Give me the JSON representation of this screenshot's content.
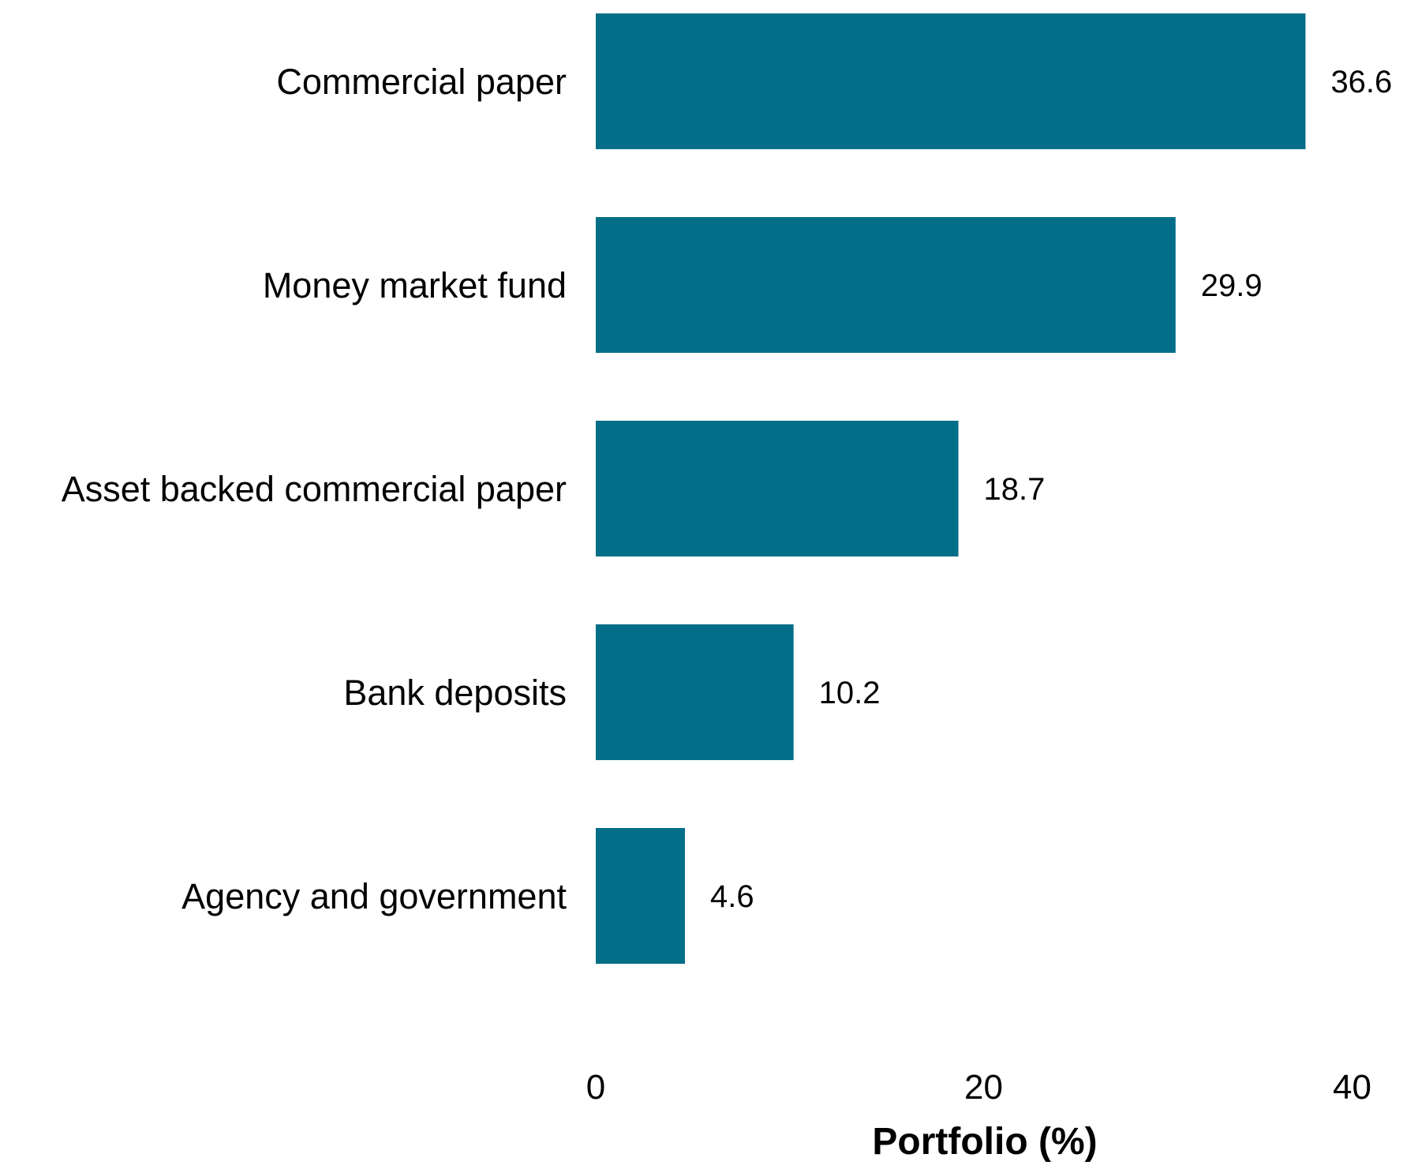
{
  "chart_data": {
    "type": "bar",
    "orientation": "horizontal",
    "categories": [
      "Commercial paper",
      "Money market fund",
      "Asset backed commercial paper",
      "Bank deposits",
      "Agency and government"
    ],
    "values": [
      36.6,
      29.9,
      18.7,
      10.2,
      4.6
    ],
    "value_labels": [
      "36.6",
      "29.9",
      "18.7",
      "10.2",
      "4.6"
    ],
    "xlabel": "Portfolio (%)",
    "ylabel": "",
    "xlim": [
      0,
      40
    ],
    "xticks": [
      0,
      20,
      40
    ],
    "xtick_labels": [
      "0",
      "20",
      "40"
    ],
    "grid": false,
    "legend": "none",
    "bar_color": "#026e87"
  }
}
